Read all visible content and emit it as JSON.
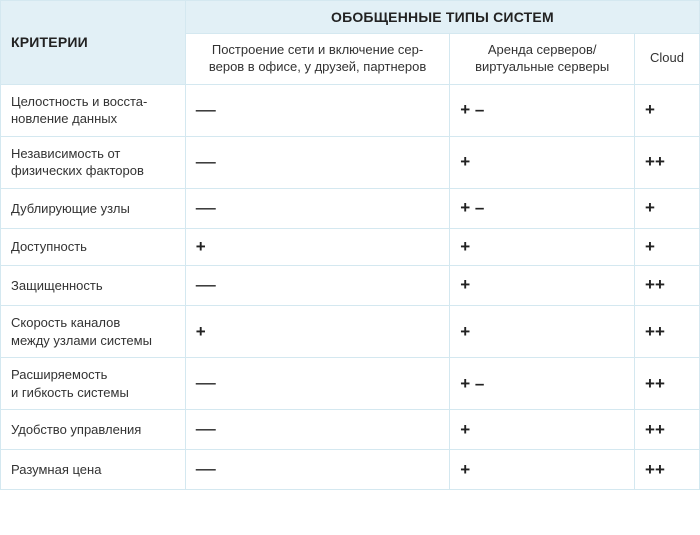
{
  "header": {
    "criteria_label": "КРИТЕРИИ",
    "systems_label": "ОБОБЩЕННЫЕ ТИПЫ СИСТЕМ"
  },
  "columns": {
    "a": "Построение сети и включение сер-\nверов в офисе, у друзей, партнеров",
    "b": "Аренда серверов/\nвиртуальные серверы",
    "c": "Cloud"
  },
  "rows": [
    {
      "label": "Целостность и восста-\nновление данных",
      "a": "—",
      "b": "+ –",
      "c": "+"
    },
    {
      "label": "Независимость от\nфизических факторов",
      "a": "—",
      "b": "+",
      "c": "++"
    },
    {
      "label": "Дублирующие узлы",
      "a": "—",
      "b": "+ –",
      "c": "+"
    },
    {
      "label": "Доступность",
      "a": "+",
      "b": "+",
      "c": "+"
    },
    {
      "label": "Защищенность",
      "a": "—",
      "b": "+",
      "c": "++"
    },
    {
      "label": "Скорость каналов\nмежду узлами системы",
      "a": "+",
      "b": "+",
      "c": "++"
    },
    {
      "label": "Расширяемость\nи гибкость системы",
      "a": "—",
      "b": "+ –",
      "c": "++"
    },
    {
      "label": "Удобство управления",
      "a": "—",
      "b": "+",
      "c": "++"
    },
    {
      "label": "Разумная цена",
      "a": "—",
      "b": "+",
      "c": "++"
    }
  ],
  "style": {
    "header_bg": "#e2f0f6",
    "border_color": "#d4e8f0",
    "text_color": "#222",
    "font": "Arial"
  }
}
